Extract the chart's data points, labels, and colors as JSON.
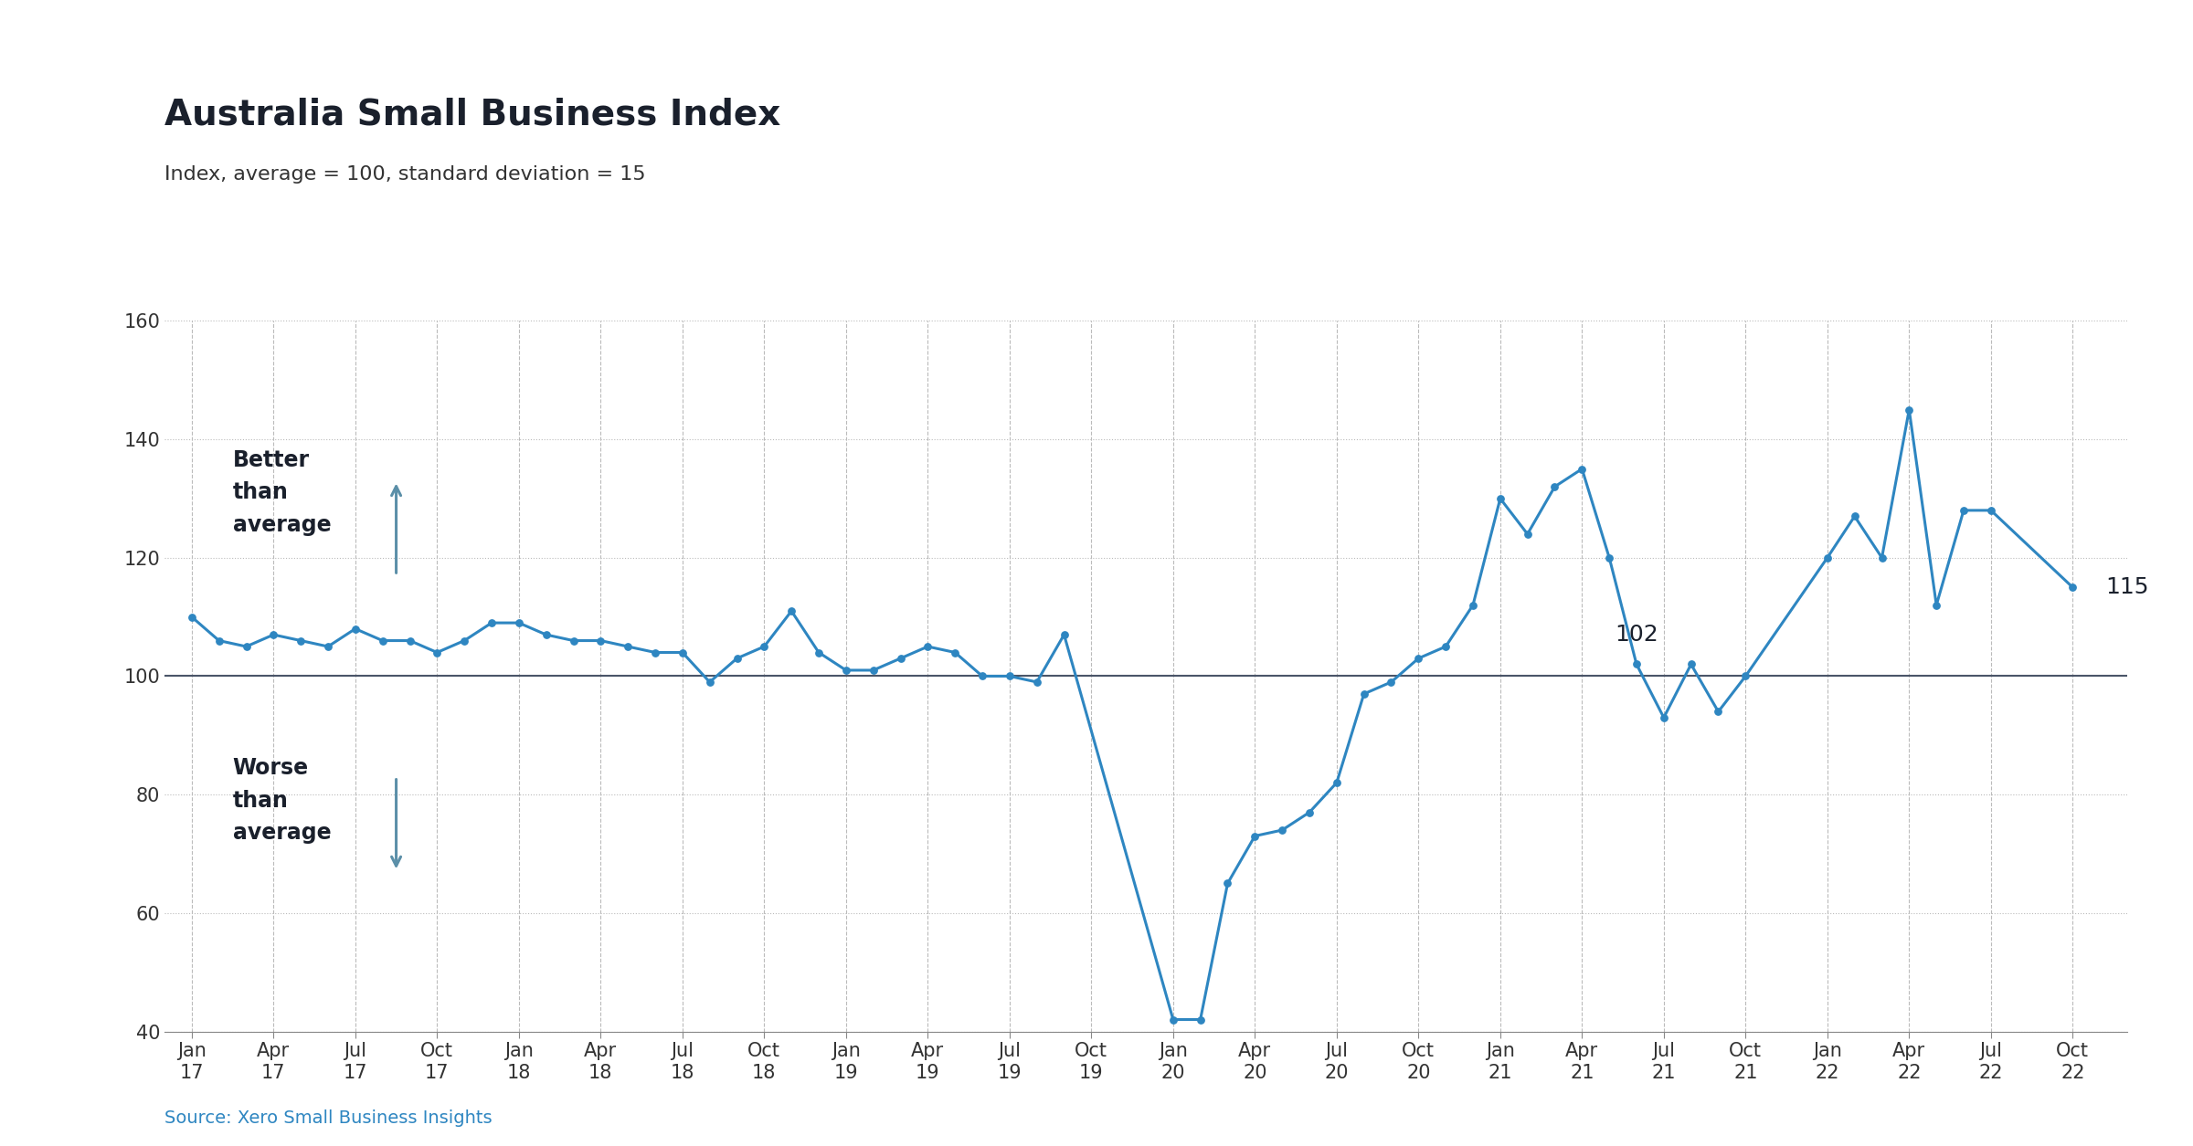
{
  "title": "Australia Small Business Index",
  "subtitle": "Index, average = 100, standard deviation = 15",
  "source": "Source: Xero Small Business Insights",
  "line_color": "#2E86C1",
  "avg_line_color": "#4a5568",
  "background_color": "#ffffff",
  "ylim": [
    40,
    160
  ],
  "yticks": [
    40,
    60,
    80,
    100,
    120,
    140,
    160
  ],
  "x_labels": [
    "Jan\n17",
    "Apr\n17",
    "Jul\n17",
    "Oct\n17",
    "Jan\n18",
    "Apr\n18",
    "Jul\n18",
    "Oct\n18",
    "Jan\n19",
    "Apr\n19",
    "Jul\n19",
    "Oct\n19",
    "Jan\n20",
    "Apr\n20",
    "Jul\n20",
    "Oct\n20",
    "Jan\n21",
    "Apr\n21",
    "Jul\n21",
    "Oct\n21",
    "Jan\n22",
    "Apr\n22",
    "Jul\n22",
    "Oct\n22"
  ],
  "x_tick_positions": [
    0,
    3,
    6,
    9,
    12,
    15,
    18,
    21,
    24,
    27,
    30,
    33,
    36,
    39,
    42,
    45,
    48,
    51,
    54,
    57,
    60,
    63,
    66,
    69
  ],
  "values": [
    110,
    106,
    105,
    107,
    106,
    105,
    108,
    106,
    106,
    104,
    106,
    109,
    109,
    107,
    106,
    106,
    105,
    104,
    104,
    99,
    103,
    105,
    111,
    104,
    101,
    101,
    103,
    105,
    104,
    100,
    100,
    99,
    107,
    42,
    42,
    65,
    73,
    74,
    77,
    82,
    97,
    99,
    103,
    105,
    112,
    130,
    124,
    132,
    135,
    120,
    102,
    93,
    102,
    94,
    100,
    120,
    127,
    120,
    145,
    112,
    128,
    128,
    115
  ],
  "x_values": [
    0,
    1,
    2,
    3,
    4,
    5,
    6,
    7,
    8,
    9,
    10,
    11,
    12,
    13,
    14,
    15,
    16,
    17,
    18,
    19,
    20,
    21,
    22,
    23,
    24,
    25,
    26,
    27,
    28,
    29,
    30,
    31,
    32,
    36,
    37,
    38,
    39,
    40,
    41,
    42,
    43,
    44,
    45,
    46,
    47,
    48,
    49,
    50,
    51,
    52,
    53,
    54,
    55,
    56,
    57,
    60,
    61,
    62,
    63,
    64,
    65,
    66,
    69
  ],
  "arrow_color": "#5b8fa8",
  "better_text": "Better\nthan\naverage",
  "worse_text": "Worse\nthan\naverage",
  "text_color": "#1a202c",
  "title_fontsize": 28,
  "subtitle_fontsize": 16,
  "tick_fontsize": 15,
  "annot_fontsize": 18,
  "source_fontsize": 14,
  "label_fontsize": 17
}
